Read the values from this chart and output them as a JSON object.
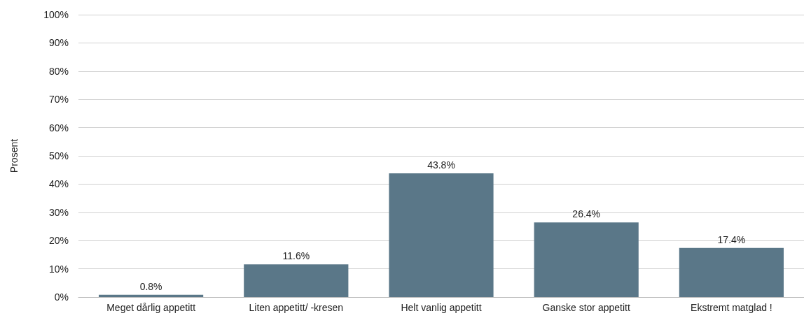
{
  "chart_data": {
    "type": "bar",
    "ylabel": "Prosent",
    "categories": [
      "Meget dårlig appetitt",
      "Liten appetitt/ -kresen",
      "Helt vanlig appetitt",
      "Ganske stor appetitt",
      "Ekstremt matglad !"
    ],
    "values": [
      0.8,
      11.6,
      43.8,
      26.4,
      17.4
    ],
    "value_labels": [
      "0.8%",
      "11.6%",
      "43.8%",
      "26.4%",
      "17.4%"
    ],
    "color": "#5a7788",
    "ylim": [
      0,
      100
    ],
    "yticks": [
      {
        "value": 0,
        "label": "0%"
      },
      {
        "value": 10,
        "label": "10%"
      },
      {
        "value": 20,
        "label": "20%"
      },
      {
        "value": 30,
        "label": "30%"
      },
      {
        "value": 40,
        "label": "40%"
      },
      {
        "value": 50,
        "label": "50%"
      },
      {
        "value": 60,
        "label": "60%"
      },
      {
        "value": 70,
        "label": "70%"
      },
      {
        "value": 80,
        "label": "80%"
      },
      {
        "value": 90,
        "label": "90%"
      },
      {
        "value": 100,
        "label": "100%"
      }
    ],
    "grid": "y"
  }
}
